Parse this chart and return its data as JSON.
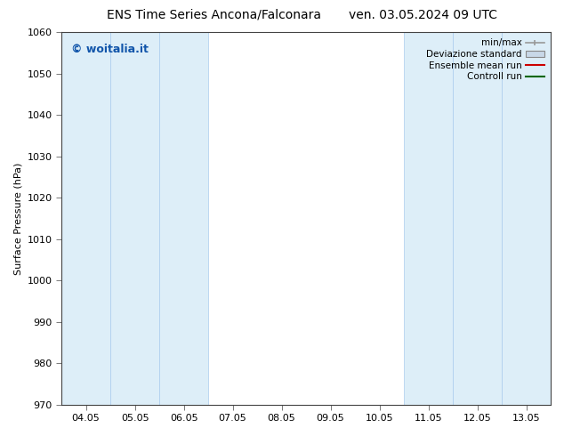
{
  "title_left": "ENS Time Series Ancona/Falconara",
  "title_right": "ven. 03.05.2024 09 UTC",
  "ylabel": "Surface Pressure (hPa)",
  "ylim": [
    970,
    1060
  ],
  "yticks": [
    970,
    980,
    990,
    1000,
    1010,
    1020,
    1030,
    1040,
    1050,
    1060
  ],
  "xtick_labels": [
    "04.05",
    "05.05",
    "06.05",
    "07.05",
    "08.05",
    "09.05",
    "10.05",
    "11.05",
    "12.05",
    "13.05"
  ],
  "x_values": [
    0,
    1,
    2,
    3,
    4,
    5,
    6,
    7,
    8,
    9
  ],
  "shaded_bands": [
    0,
    1,
    2,
    7,
    8,
    9
  ],
  "band_color": "#ddeef8",
  "band_edge_color": "#aaccee",
  "watermark": "© woitalia.it",
  "watermark_color": "#1155aa",
  "legend_items": [
    {
      "label": "min/max",
      "color": "#999999",
      "type": "minmax"
    },
    {
      "label": "Deviazione standard",
      "color": "#c8d8e8",
      "type": "std"
    },
    {
      "label": "Ensemble mean run",
      "color": "#cc0000",
      "type": "line"
    },
    {
      "label": "Controll run",
      "color": "#006600",
      "type": "line"
    }
  ],
  "background_color": "#ffffff",
  "plot_bg_color": "#ffffff",
  "title_fontsize": 10,
  "ylabel_fontsize": 8,
  "tick_fontsize": 8,
  "legend_fontsize": 7.5,
  "watermark_fontsize": 9
}
